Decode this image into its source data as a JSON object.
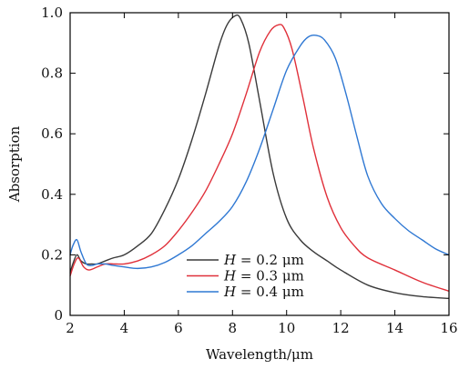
{
  "chart_data": {
    "type": "line",
    "title": "",
    "xlabel": "Wavelength/μm",
    "ylabel": "Absorption",
    "xlim": [
      2,
      16
    ],
    "ylim": [
      0,
      1.0
    ],
    "xticks": [
      2,
      4,
      6,
      8,
      10,
      12,
      14,
      16
    ],
    "xtick_labels": [
      "2",
      "4",
      "6",
      "8",
      "10",
      "12",
      "14",
      "16"
    ],
    "yticks": [
      0,
      0.2,
      0.4,
      0.6,
      0.8,
      1.0
    ],
    "ytick_labels": [
      "0",
      "0.2",
      "0.4",
      "0.6",
      "0.8",
      "1.0"
    ],
    "grid": false,
    "legend_position": "lower-center",
    "series": [
      {
        "name": "H = 0.2 μm",
        "legend_var": "H",
        "legend_value": " = 0.2 μm",
        "color": "#3a3a3a",
        "x": [
          2.0,
          2.1,
          2.25,
          2.4,
          2.6,
          2.8,
          3.0,
          3.3,
          3.6,
          4.0,
          4.5,
          5.0,
          5.5,
          6.0,
          6.5,
          7.0,
          7.5,
          7.8,
          8.1,
          8.3,
          8.6,
          9.0,
          9.5,
          10.0,
          10.5,
          11.0,
          11.5,
          12.0,
          13.0,
          14.0,
          15.0,
          16.0
        ],
        "y": [
          0.14,
          0.17,
          0.2,
          0.18,
          0.17,
          0.17,
          0.17,
          0.18,
          0.19,
          0.2,
          0.23,
          0.27,
          0.35,
          0.45,
          0.58,
          0.73,
          0.89,
          0.96,
          0.99,
          0.98,
          0.9,
          0.71,
          0.47,
          0.32,
          0.25,
          0.21,
          0.18,
          0.15,
          0.1,
          0.075,
          0.062,
          0.056
        ]
      },
      {
        "name": "H = 0.3 μm",
        "legend_var": "H",
        "legend_value": " = 0.3 μm",
        "color": "#e0303a",
        "x": [
          2.0,
          2.15,
          2.3,
          2.5,
          2.7,
          3.0,
          3.3,
          3.6,
          4.0,
          4.5,
          5.0,
          5.5,
          6.0,
          6.5,
          7.0,
          7.5,
          8.0,
          8.5,
          9.0,
          9.4,
          9.7,
          9.9,
          10.2,
          10.6,
          11.0,
          11.5,
          12.0,
          12.5,
          13.0,
          14.0,
          15.0,
          16.0
        ],
        "y": [
          0.13,
          0.17,
          0.19,
          0.16,
          0.15,
          0.16,
          0.17,
          0.17,
          0.17,
          0.18,
          0.2,
          0.23,
          0.28,
          0.34,
          0.41,
          0.5,
          0.6,
          0.73,
          0.87,
          0.94,
          0.96,
          0.95,
          0.88,
          0.72,
          0.55,
          0.39,
          0.29,
          0.23,
          0.19,
          0.15,
          0.11,
          0.08
        ]
      },
      {
        "name": "H = 0.4 μm",
        "legend_var": "H",
        "legend_value": " = 0.4 μm",
        "color": "#2f78d3",
        "x": [
          2.0,
          2.1,
          2.25,
          2.4,
          2.6,
          2.8,
          3.0,
          3.3,
          3.6,
          4.0,
          4.5,
          5.0,
          5.5,
          6.0,
          6.5,
          7.0,
          7.5,
          8.0,
          8.5,
          9.0,
          9.5,
          10.0,
          10.5,
          10.8,
          11.1,
          11.4,
          11.8,
          12.2,
          12.6,
          13.0,
          13.5,
          14.0,
          14.5,
          15.0,
          15.5,
          16.0
        ],
        "y": [
          0.2,
          0.23,
          0.25,
          0.21,
          0.17,
          0.165,
          0.17,
          0.17,
          0.165,
          0.16,
          0.155,
          0.16,
          0.175,
          0.2,
          0.23,
          0.27,
          0.31,
          0.36,
          0.44,
          0.55,
          0.68,
          0.81,
          0.89,
          0.92,
          0.925,
          0.91,
          0.85,
          0.73,
          0.59,
          0.46,
          0.37,
          0.32,
          0.28,
          0.25,
          0.22,
          0.2
        ]
      }
    ]
  }
}
